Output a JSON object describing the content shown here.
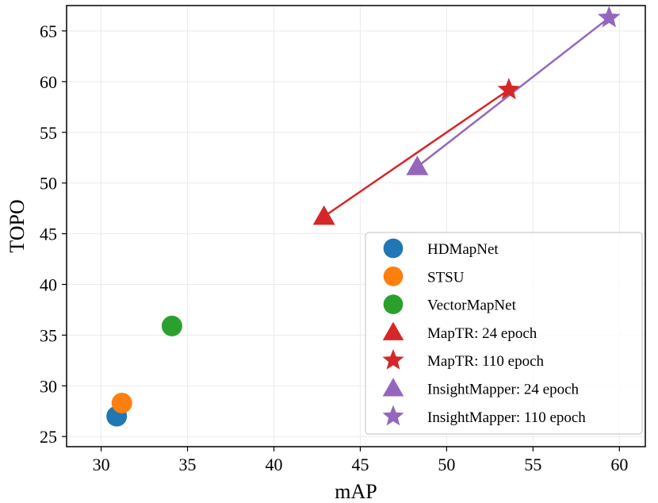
{
  "chart_data": {
    "type": "scatter",
    "title": "",
    "xlabel": "mAP",
    "ylabel": "TOPO",
    "xlim": [
      28,
      61.5
    ],
    "ylim": [
      24,
      67.5
    ],
    "xticks": [
      30,
      35,
      40,
      45,
      50,
      55,
      60
    ],
    "yticks": [
      25,
      30,
      35,
      40,
      45,
      50,
      55,
      60,
      65
    ],
    "grid": true,
    "legend_position": "lower-right",
    "series": [
      {
        "name": "HDMapNet",
        "marker": "circle",
        "color": "#1f77b4",
        "points": [
          [
            30.9,
            27.0
          ]
        ]
      },
      {
        "name": "STSU",
        "marker": "circle",
        "color": "#ff7f0e",
        "points": [
          [
            31.2,
            28.3
          ]
        ]
      },
      {
        "name": "VectorMapNet",
        "marker": "circle",
        "color": "#2ca02c",
        "points": [
          [
            34.1,
            35.9
          ]
        ]
      },
      {
        "name": "MapTR: 24 epoch",
        "marker": "triangle",
        "color": "#d62728",
        "points": [
          [
            42.9,
            46.7
          ]
        ]
      },
      {
        "name": "MapTR: 110 epoch",
        "marker": "star",
        "color": "#d62728",
        "points": [
          [
            53.6,
            59.2
          ]
        ]
      },
      {
        "name": "InsightMapper: 24 epoch",
        "marker": "triangle",
        "color": "#9467bd",
        "points": [
          [
            48.3,
            51.6
          ]
        ]
      },
      {
        "name": "InsightMapper: 110 epoch",
        "marker": "star",
        "color": "#9467bd",
        "points": [
          [
            59.4,
            66.3
          ]
        ]
      }
    ],
    "lines": [
      {
        "from": "MapTR: 24 epoch",
        "to": "MapTR: 110 epoch",
        "color": "#d62728"
      },
      {
        "from": "InsightMapper: 24 epoch",
        "to": "InsightMapper: 110 epoch",
        "color": "#9467bd"
      }
    ]
  }
}
